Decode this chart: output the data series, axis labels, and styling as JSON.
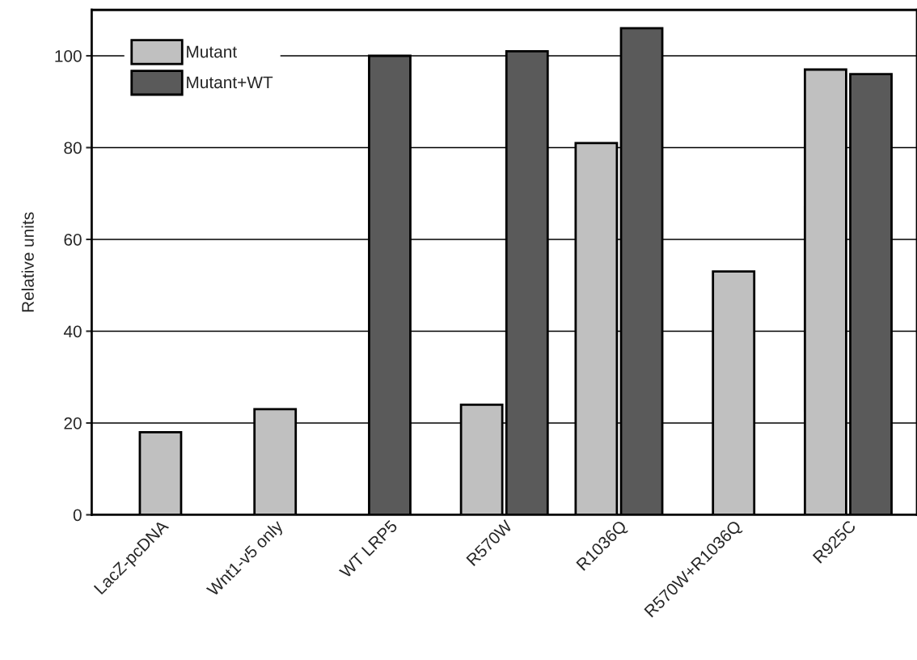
{
  "chart_data": {
    "type": "bar",
    "ylabel": "Relative units",
    "categories": [
      "LacZ-pcDNA",
      "Wnt1-v5 only",
      "WT LRP5",
      "R570W",
      "R1036Q",
      "R570W+R1036Q",
      "R925C"
    ],
    "series": [
      {
        "name": "Mutant",
        "color": "#c0c0c0",
        "values": [
          18,
          23,
          null,
          24,
          81,
          53,
          97
        ]
      },
      {
        "name": "Mutant+WT",
        "color": "#5a5a5a",
        "values": [
          null,
          null,
          100,
          101,
          106,
          null,
          96
        ]
      }
    ],
    "ylim": [
      0,
      110
    ],
    "yticks": [
      0,
      20,
      40,
      60,
      80,
      100
    ],
    "grid": "y",
    "legend": "top left"
  }
}
